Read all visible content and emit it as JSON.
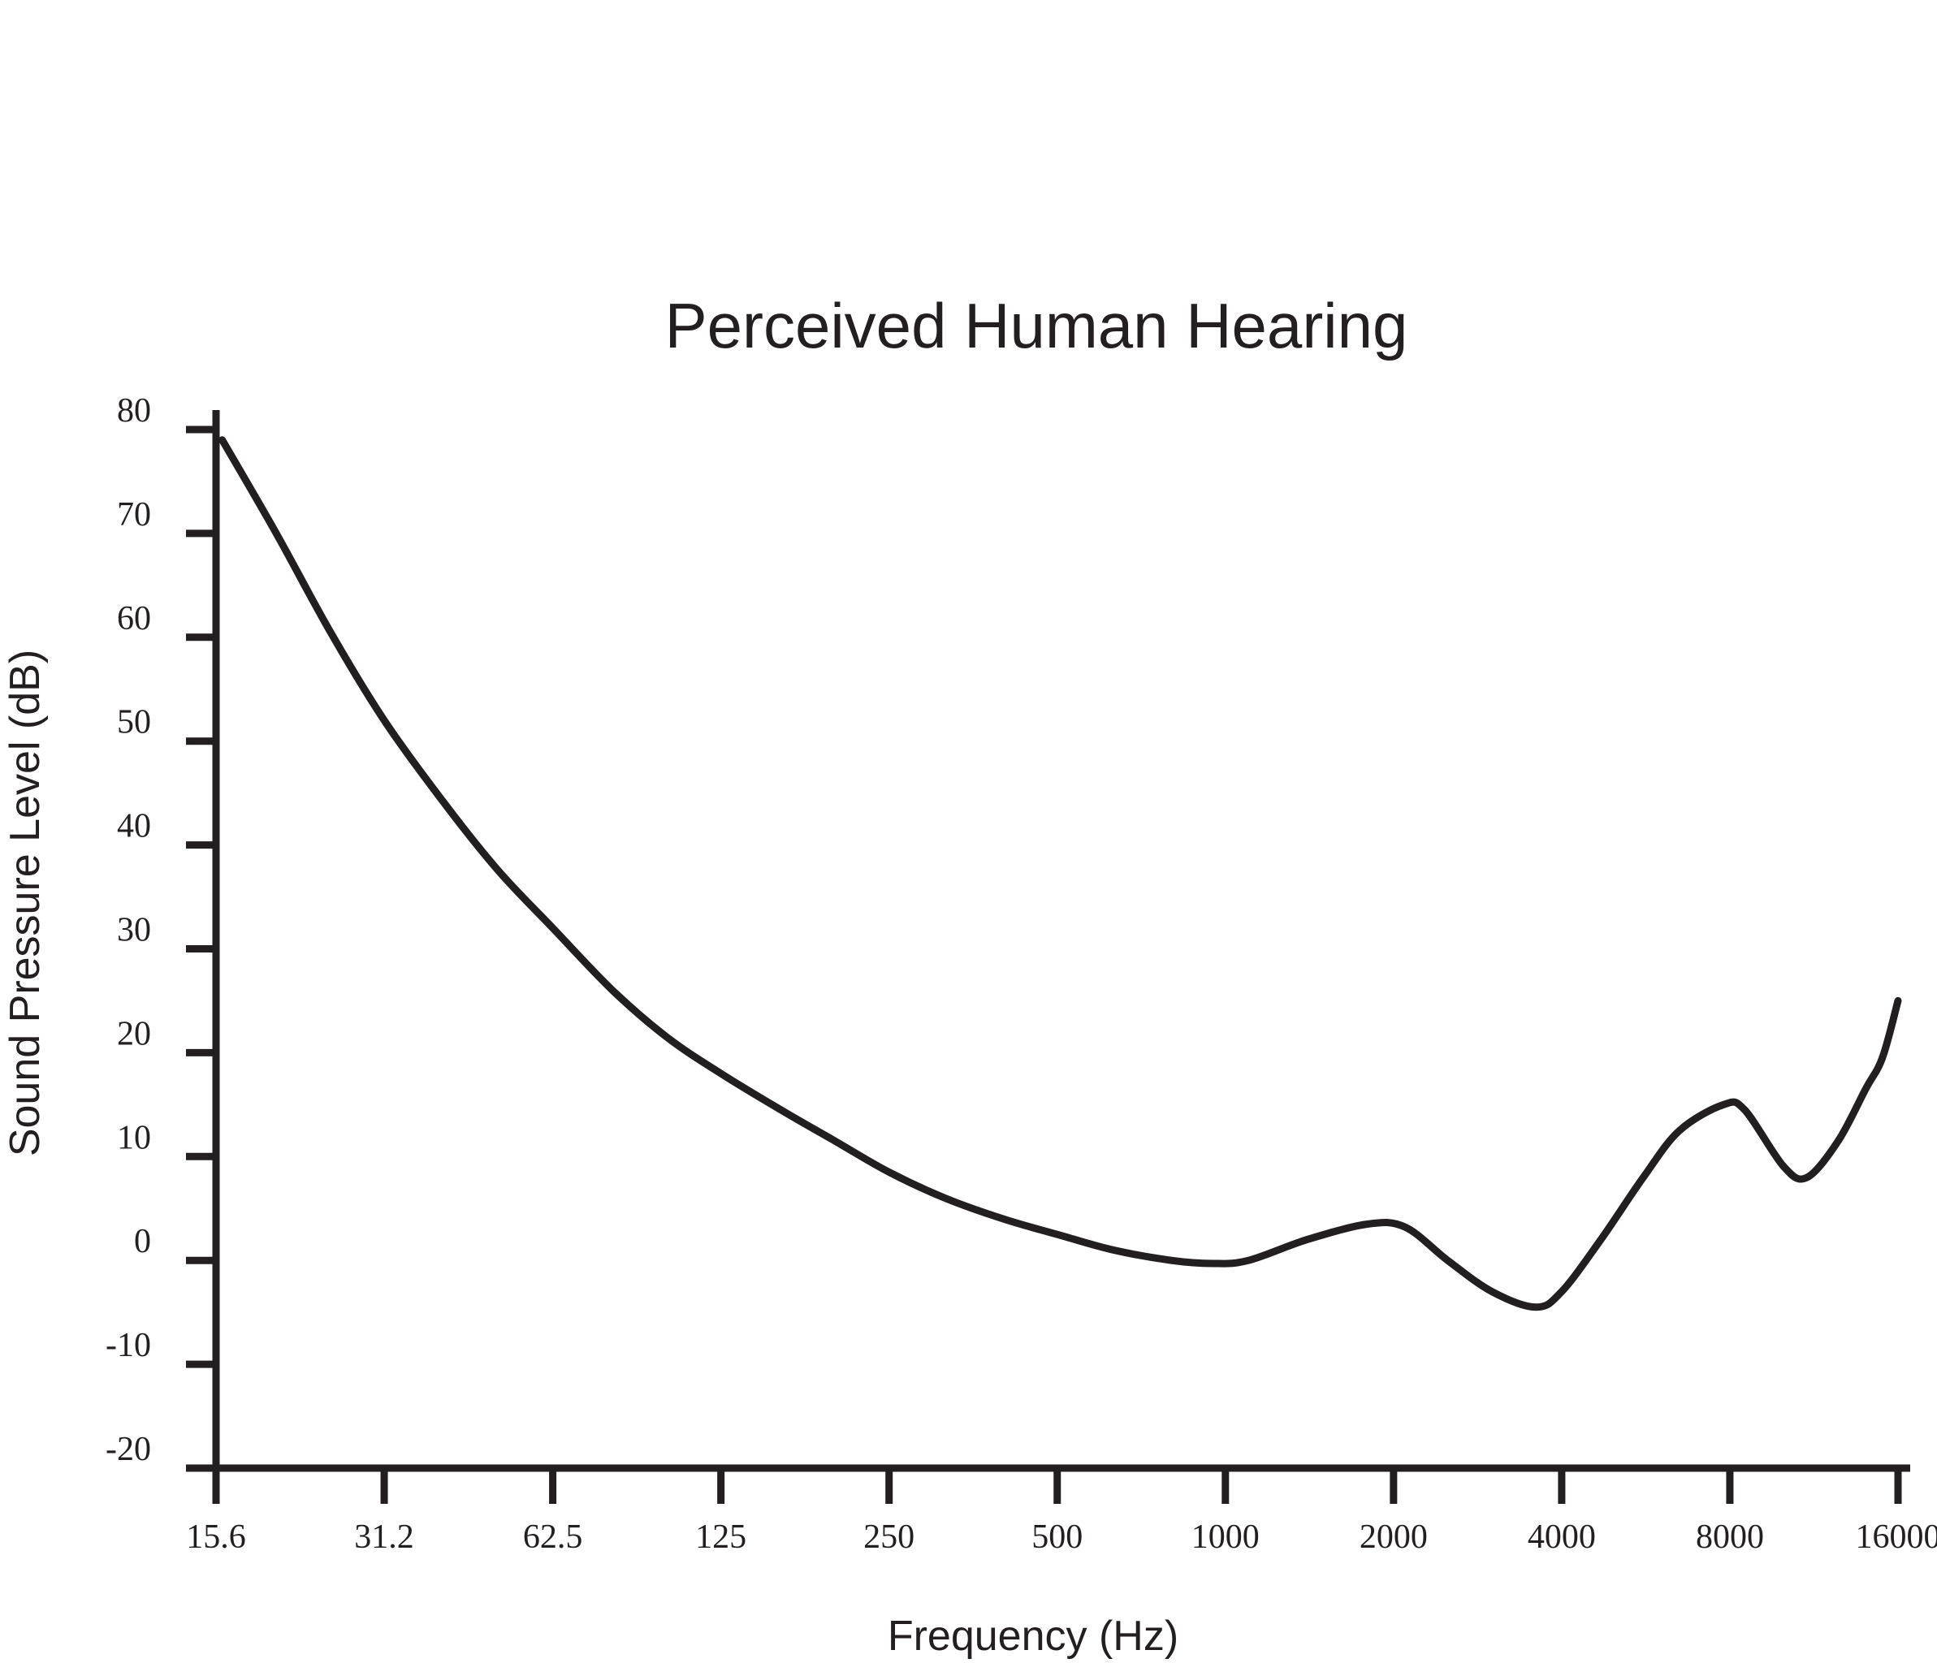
{
  "chart_data": {
    "type": "line",
    "title": "Perceived Human Hearing",
    "xlabel": "Frequency (Hz)",
    "ylabel": "Sound Pressure Level (dB)",
    "x_scale": "log2",
    "x_ticks": [
      "15.6",
      "31.2",
      "62.5",
      "125",
      "250",
      "500",
      "1000",
      "2000",
      "4000",
      "8000",
      "16000"
    ],
    "y_ticks": [
      "80",
      "70",
      "60",
      "50",
      "40",
      "30",
      "20",
      "10",
      "0",
      "-10",
      "-20"
    ],
    "xlim": [
      15.6,
      16000
    ],
    "ylim": [
      -20,
      80
    ],
    "grid": false,
    "legend": "none",
    "color": "#231f20",
    "series": [
      {
        "x": [
          16,
          20,
          25,
          31.2,
          40,
          50,
          62.5,
          80,
          100,
          125,
          160,
          200,
          250,
          315,
          400,
          500,
          630,
          800,
          950,
          1100,
          1400,
          1800,
          2100,
          2500,
          3000,
          3600,
          4000,
          4700,
          5600,
          6500,
          7800,
          8500,
          10000,
          11000,
          12500,
          14000,
          15000,
          16000
        ],
        "y": [
          79,
          70,
          60.5,
          52,
          44,
          37.5,
          32,
          26,
          21.5,
          18,
          14.5,
          11.5,
          8.5,
          6,
          4,
          2.5,
          1,
          0,
          -0.3,
          0,
          2,
          3.5,
          3.2,
          0,
          -3,
          -4.5,
          -3,
          2,
          8,
          12.5,
          15,
          14.5,
          9,
          8,
          11.5,
          16.5,
          19.5,
          25
        ]
      }
    ]
  }
}
